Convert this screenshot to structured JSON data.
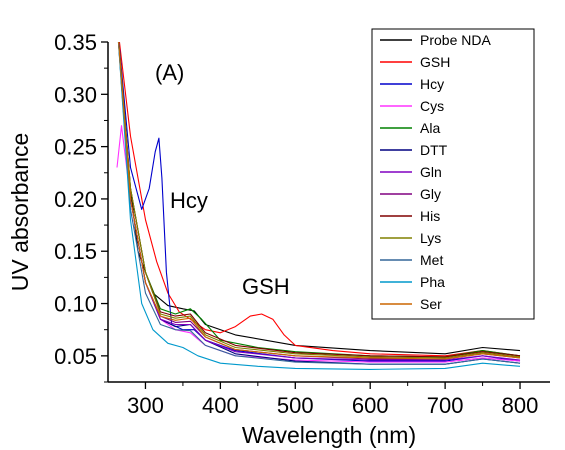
{
  "chart_data": {
    "type": "line",
    "title": "",
    "panel_label": "(A)",
    "xlabel": "Wavelength (nm)",
    "ylabel": "UV absorbance",
    "xlim": [
      250,
      840
    ],
    "ylim": [
      0.025,
      0.35
    ],
    "xticks": [
      300,
      400,
      500,
      600,
      700,
      800
    ],
    "yticks": [
      0.05,
      0.1,
      0.15,
      0.2,
      0.25,
      0.3,
      0.35
    ],
    "ytick_labels": [
      "0.05",
      "0.10",
      "0.15",
      "0.20",
      "0.25",
      "0.30",
      "0.35"
    ],
    "grid": false,
    "legend_position": "top-right",
    "annotations": [
      {
        "text": "Hcy",
        "x": 330,
        "y": 0.19
      },
      {
        "text": "GSH",
        "x": 440,
        "y": 0.1
      }
    ],
    "series": [
      {
        "name": "Probe NDA",
        "color": "#000000",
        "points": [
          [
            262,
            0.37
          ],
          [
            275,
            0.24
          ],
          [
            290,
            0.15
          ],
          [
            310,
            0.11
          ],
          [
            330,
            0.098
          ],
          [
            350,
            0.095
          ],
          [
            365,
            0.093
          ],
          [
            380,
            0.08
          ],
          [
            420,
            0.07
          ],
          [
            500,
            0.06
          ],
          [
            600,
            0.055
          ],
          [
            700,
            0.052
          ],
          [
            750,
            0.058
          ],
          [
            800,
            0.055
          ]
        ]
      },
      {
        "name": "GSH",
        "color": "#ff0000",
        "points": [
          [
            262,
            0.37
          ],
          [
            280,
            0.26
          ],
          [
            300,
            0.18
          ],
          [
            315,
            0.14
          ],
          [
            330,
            0.11
          ],
          [
            345,
            0.092
          ],
          [
            360,
            0.085
          ],
          [
            380,
            0.075
          ],
          [
            400,
            0.072
          ],
          [
            420,
            0.078
          ],
          [
            440,
            0.088
          ],
          [
            455,
            0.09
          ],
          [
            470,
            0.085
          ],
          [
            485,
            0.07
          ],
          [
            500,
            0.06
          ],
          [
            550,
            0.055
          ],
          [
            600,
            0.052
          ],
          [
            700,
            0.05
          ],
          [
            750,
            0.055
          ],
          [
            800,
            0.05
          ]
        ]
      },
      {
        "name": "Hcy",
        "color": "#0000cc",
        "points": [
          [
            262,
            0.37
          ],
          [
            280,
            0.23
          ],
          [
            295,
            0.19
          ],
          [
            305,
            0.21
          ],
          [
            313,
            0.245
          ],
          [
            318,
            0.258
          ],
          [
            322,
            0.22
          ],
          [
            328,
            0.13
          ],
          [
            335,
            0.08
          ],
          [
            350,
            0.075
          ],
          [
            365,
            0.075
          ],
          [
            380,
            0.065
          ],
          [
            420,
            0.055
          ],
          [
            500,
            0.048
          ],
          [
            600,
            0.045
          ],
          [
            700,
            0.045
          ],
          [
            750,
            0.05
          ],
          [
            800,
            0.045
          ]
        ]
      },
      {
        "name": "Cys",
        "color": "#ff33ff",
        "points": [
          [
            262,
            0.23
          ],
          [
            268,
            0.27
          ],
          [
            280,
            0.2
          ],
          [
            300,
            0.12
          ],
          [
            320,
            0.085
          ],
          [
            340,
            0.075
          ],
          [
            360,
            0.072
          ],
          [
            380,
            0.06
          ],
          [
            420,
            0.05
          ],
          [
            500,
            0.046
          ],
          [
            600,
            0.044
          ],
          [
            700,
            0.044
          ],
          [
            750,
            0.048
          ],
          [
            800,
            0.045
          ]
        ]
      },
      {
        "name": "Ala",
        "color": "#008000",
        "points": [
          [
            262,
            0.37
          ],
          [
            280,
            0.21
          ],
          [
            300,
            0.13
          ],
          [
            320,
            0.095
          ],
          [
            340,
            0.09
          ],
          [
            360,
            0.095
          ],
          [
            375,
            0.085
          ],
          [
            400,
            0.065
          ],
          [
            450,
            0.058
          ],
          [
            500,
            0.054
          ],
          [
            600,
            0.05
          ],
          [
            700,
            0.049
          ],
          [
            750,
            0.055
          ],
          [
            800,
            0.05
          ]
        ]
      },
      {
        "name": "DTT",
        "color": "#000080",
        "points": [
          [
            262,
            0.37
          ],
          [
            280,
            0.2
          ],
          [
            300,
            0.12
          ],
          [
            320,
            0.085
          ],
          [
            340,
            0.078
          ],
          [
            360,
            0.08
          ],
          [
            380,
            0.065
          ],
          [
            420,
            0.052
          ],
          [
            500,
            0.045
          ],
          [
            600,
            0.042
          ],
          [
            700,
            0.042
          ],
          [
            750,
            0.047
          ],
          [
            800,
            0.043
          ]
        ]
      },
      {
        "name": "Gln",
        "color": "#8000c0",
        "points": [
          [
            262,
            0.37
          ],
          [
            280,
            0.2
          ],
          [
            300,
            0.12
          ],
          [
            320,
            0.085
          ],
          [
            340,
            0.08
          ],
          [
            360,
            0.08
          ],
          [
            380,
            0.065
          ],
          [
            420,
            0.054
          ],
          [
            500,
            0.048
          ],
          [
            600,
            0.046
          ],
          [
            700,
            0.046
          ],
          [
            750,
            0.05
          ],
          [
            800,
            0.046
          ]
        ]
      },
      {
        "name": "Gly",
        "color": "#800080",
        "points": [
          [
            262,
            0.37
          ],
          [
            280,
            0.2
          ],
          [
            300,
            0.12
          ],
          [
            320,
            0.088
          ],
          [
            340,
            0.082
          ],
          [
            360,
            0.083
          ],
          [
            380,
            0.068
          ],
          [
            420,
            0.056
          ],
          [
            500,
            0.05
          ],
          [
            600,
            0.047
          ],
          [
            700,
            0.047
          ],
          [
            750,
            0.052
          ],
          [
            800,
            0.048
          ]
        ]
      },
      {
        "name": "His",
        "color": "#800000",
        "points": [
          [
            262,
            0.37
          ],
          [
            280,
            0.21
          ],
          [
            300,
            0.13
          ],
          [
            320,
            0.092
          ],
          [
            340,
            0.088
          ],
          [
            360,
            0.09
          ],
          [
            380,
            0.072
          ],
          [
            420,
            0.06
          ],
          [
            500,
            0.053
          ],
          [
            600,
            0.05
          ],
          [
            700,
            0.049
          ],
          [
            750,
            0.054
          ],
          [
            800,
            0.05
          ]
        ]
      },
      {
        "name": "Lys",
        "color": "#808000",
        "points": [
          [
            262,
            0.37
          ],
          [
            280,
            0.21
          ],
          [
            300,
            0.13
          ],
          [
            320,
            0.09
          ],
          [
            340,
            0.086
          ],
          [
            360,
            0.088
          ],
          [
            380,
            0.07
          ],
          [
            420,
            0.058
          ],
          [
            500,
            0.052
          ],
          [
            600,
            0.049
          ],
          [
            700,
            0.048
          ],
          [
            750,
            0.053
          ],
          [
            800,
            0.049
          ]
        ]
      },
      {
        "name": "Met",
        "color": "#336699",
        "points": [
          [
            262,
            0.37
          ],
          [
            280,
            0.19
          ],
          [
            300,
            0.11
          ],
          [
            320,
            0.08
          ],
          [
            340,
            0.075
          ],
          [
            360,
            0.074
          ],
          [
            380,
            0.06
          ],
          [
            420,
            0.05
          ],
          [
            500,
            0.044
          ],
          [
            600,
            0.042
          ],
          [
            700,
            0.042
          ],
          [
            750,
            0.047
          ],
          [
            800,
            0.043
          ]
        ]
      },
      {
        "name": "Pha",
        "color": "#0099cc",
        "points": [
          [
            262,
            0.37
          ],
          [
            280,
            0.18
          ],
          [
            295,
            0.1
          ],
          [
            310,
            0.075
          ],
          [
            330,
            0.062
          ],
          [
            350,
            0.058
          ],
          [
            370,
            0.05
          ],
          [
            400,
            0.043
          ],
          [
            450,
            0.04
          ],
          [
            500,
            0.038
          ],
          [
            600,
            0.037
          ],
          [
            700,
            0.038
          ],
          [
            750,
            0.043
          ],
          [
            800,
            0.04
          ]
        ]
      },
      {
        "name": "Ser",
        "color": "#cc6600",
        "points": [
          [
            262,
            0.37
          ],
          [
            280,
            0.2
          ],
          [
            300,
            0.12
          ],
          [
            320,
            0.088
          ],
          [
            340,
            0.084
          ],
          [
            360,
            0.086
          ],
          [
            380,
            0.068
          ],
          [
            420,
            0.056
          ],
          [
            500,
            0.05
          ],
          [
            600,
            0.048
          ],
          [
            700,
            0.047
          ],
          [
            750,
            0.052
          ],
          [
            800,
            0.048
          ]
        ]
      }
    ]
  }
}
